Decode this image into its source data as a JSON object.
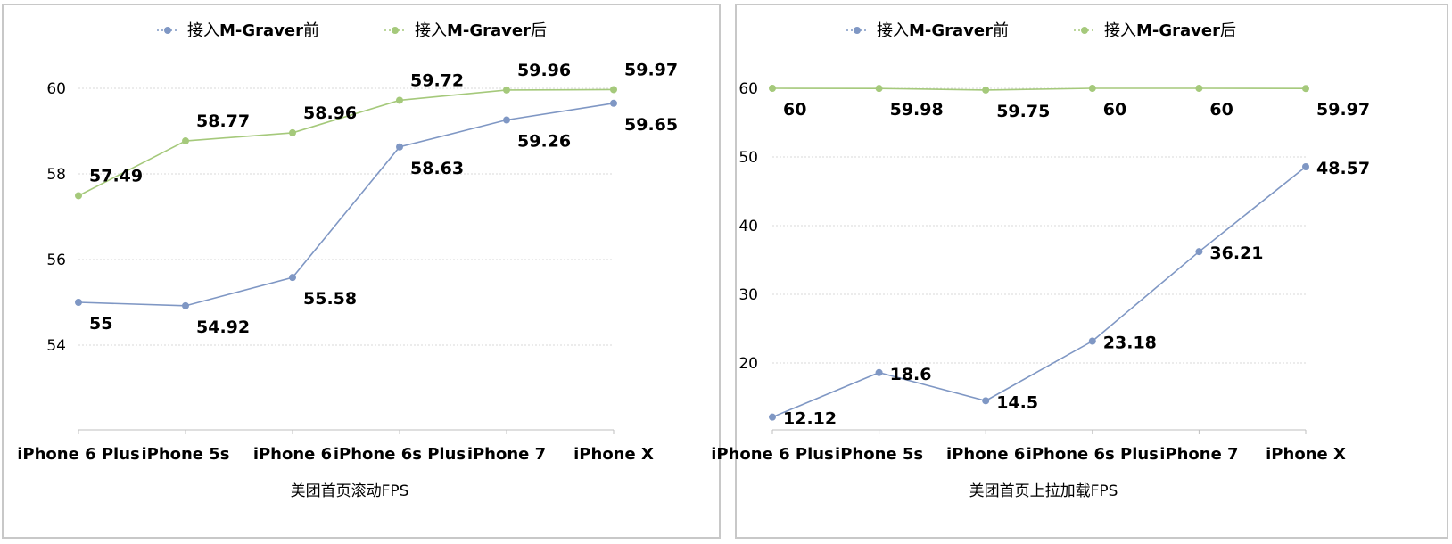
{
  "chart_data": [
    {
      "type": "line",
      "xlabel": "美团首页滚动FPS",
      "ylabel": "",
      "categories": [
        "iPhone 6 Plus",
        "iPhone 5s",
        "iPhone 6",
        "iPhone 6s Plus",
        "iPhone 7",
        "iPhone X"
      ],
      "ylim": [
        52,
        61
      ],
      "yticks": [
        54,
        56,
        58,
        60
      ],
      "grid": true,
      "legend": "top",
      "series": [
        {
          "name": "接入M-Graver前",
          "color": "#7f97c4",
          "values": [
            55,
            54.92,
            55.58,
            58.63,
            59.26,
            59.65
          ],
          "labels": [
            "55",
            "54.92",
            "55.58",
            "58.63",
            "59.26",
            "59.65"
          ]
        },
        {
          "name": "接入M-Graver后",
          "color": "#a5c97b",
          "values": [
            57.49,
            58.77,
            58.96,
            59.72,
            59.96,
            59.97
          ],
          "labels": [
            "57.49",
            "58.77",
            "58.96",
            "59.72",
            "59.96",
            "59.97"
          ]
        }
      ]
    },
    {
      "type": "line",
      "xlabel": "美团首页上拉加载FPS",
      "ylabel": "",
      "categories": [
        "iPhone 6 Plus",
        "iPhone 5s",
        "iPhone 6",
        "iPhone 6s Plus",
        "iPhone 7",
        "iPhone X"
      ],
      "ylim": [
        10,
        63
      ],
      "yticks": [
        20,
        30,
        40,
        50,
        60
      ],
      "grid": true,
      "legend": "top",
      "series": [
        {
          "name": "接入M-Graver前",
          "color": "#7f97c4",
          "values": [
            12.12,
            18.6,
            14.5,
            23.18,
            36.21,
            48.57
          ],
          "labels": [
            "12.12",
            "18.6",
            "14.5",
            "23.18",
            "36.21",
            "48.57"
          ]
        },
        {
          "name": "接入M-Graver后",
          "color": "#a5c97b",
          "values": [
            60,
            59.98,
            59.75,
            60,
            60,
            59.97
          ],
          "labels": [
            "60",
            "59.98",
            "59.75",
            "60",
            "60",
            "59.97"
          ]
        }
      ]
    }
  ]
}
